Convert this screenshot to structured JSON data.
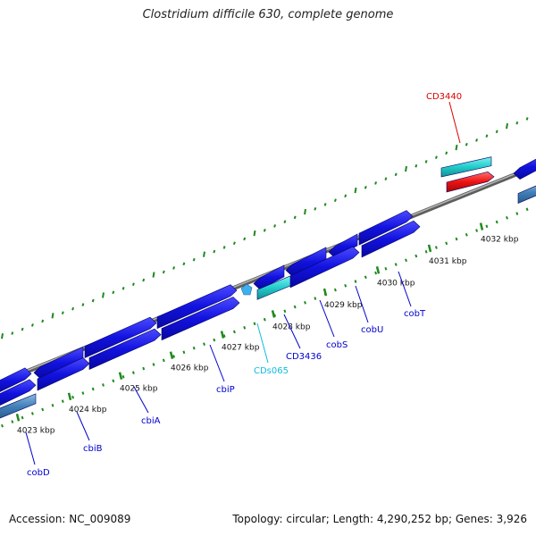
{
  "title": "Clostridium difficile 630, complete genome",
  "footer": {
    "accession": "Accession: NC_009089",
    "summary": "Topology: circular; Length: 4,290,252 bp; Genes: 3,926"
  },
  "colors": {
    "forward_feature": "#1212e0",
    "reverse_feature": "#0f0fd6",
    "ncrna_feature": "#22cccc",
    "selected_feature": "#ee1111",
    "pseudo_feature": "#3f7fb8",
    "backbone": "#8a8a8a",
    "tick": "#1f8a1f",
    "gene_label": "#0000cc",
    "ncrna_label": "#11bbdd",
    "selected_label": "#dd0000"
  },
  "ticks": [
    {
      "label": "4023 kbp"
    },
    {
      "label": "4024 kbp"
    },
    {
      "label": "4025 kbp"
    },
    {
      "label": "4026 kbp"
    },
    {
      "label": "4027 kbp"
    },
    {
      "label": "4028 kbp"
    },
    {
      "label": "4029 kbp"
    },
    {
      "label": "4030 kbp"
    },
    {
      "label": "4031 kbp"
    },
    {
      "label": "4032 kbp"
    }
  ],
  "gene_labels": [
    {
      "name": "cobD",
      "type": "gene"
    },
    {
      "name": "cbiB",
      "type": "gene"
    },
    {
      "name": "cbiA",
      "type": "gene"
    },
    {
      "name": "cbiP",
      "type": "gene"
    },
    {
      "name": "CDs065",
      "type": "ncrna"
    },
    {
      "name": "CD3436",
      "type": "gene"
    },
    {
      "name": "cobS",
      "type": "gene"
    },
    {
      "name": "cobU",
      "type": "gene"
    },
    {
      "name": "cobT",
      "type": "gene"
    },
    {
      "name": "CD3440",
      "type": "selected"
    }
  ]
}
